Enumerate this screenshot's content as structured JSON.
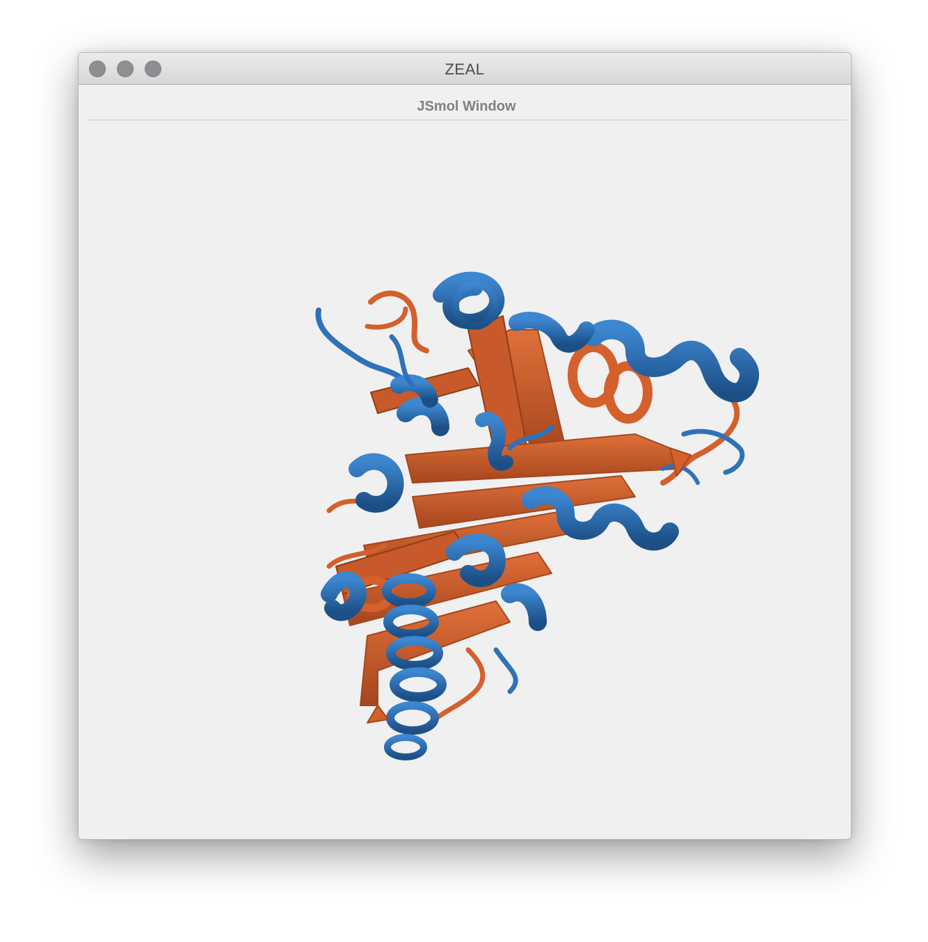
{
  "window": {
    "title": "ZEAL",
    "buttons": [
      "close",
      "minimize",
      "zoom"
    ]
  },
  "panel": {
    "title": "JSmol Window"
  },
  "viewer": {
    "render_style": "cartoon",
    "colors": {
      "helix": "#2f72b8",
      "helix_dark": "#1c4f86",
      "strand": "#d4602c",
      "strand_dark": "#a5461d",
      "background": "#f0f0f0"
    }
  }
}
